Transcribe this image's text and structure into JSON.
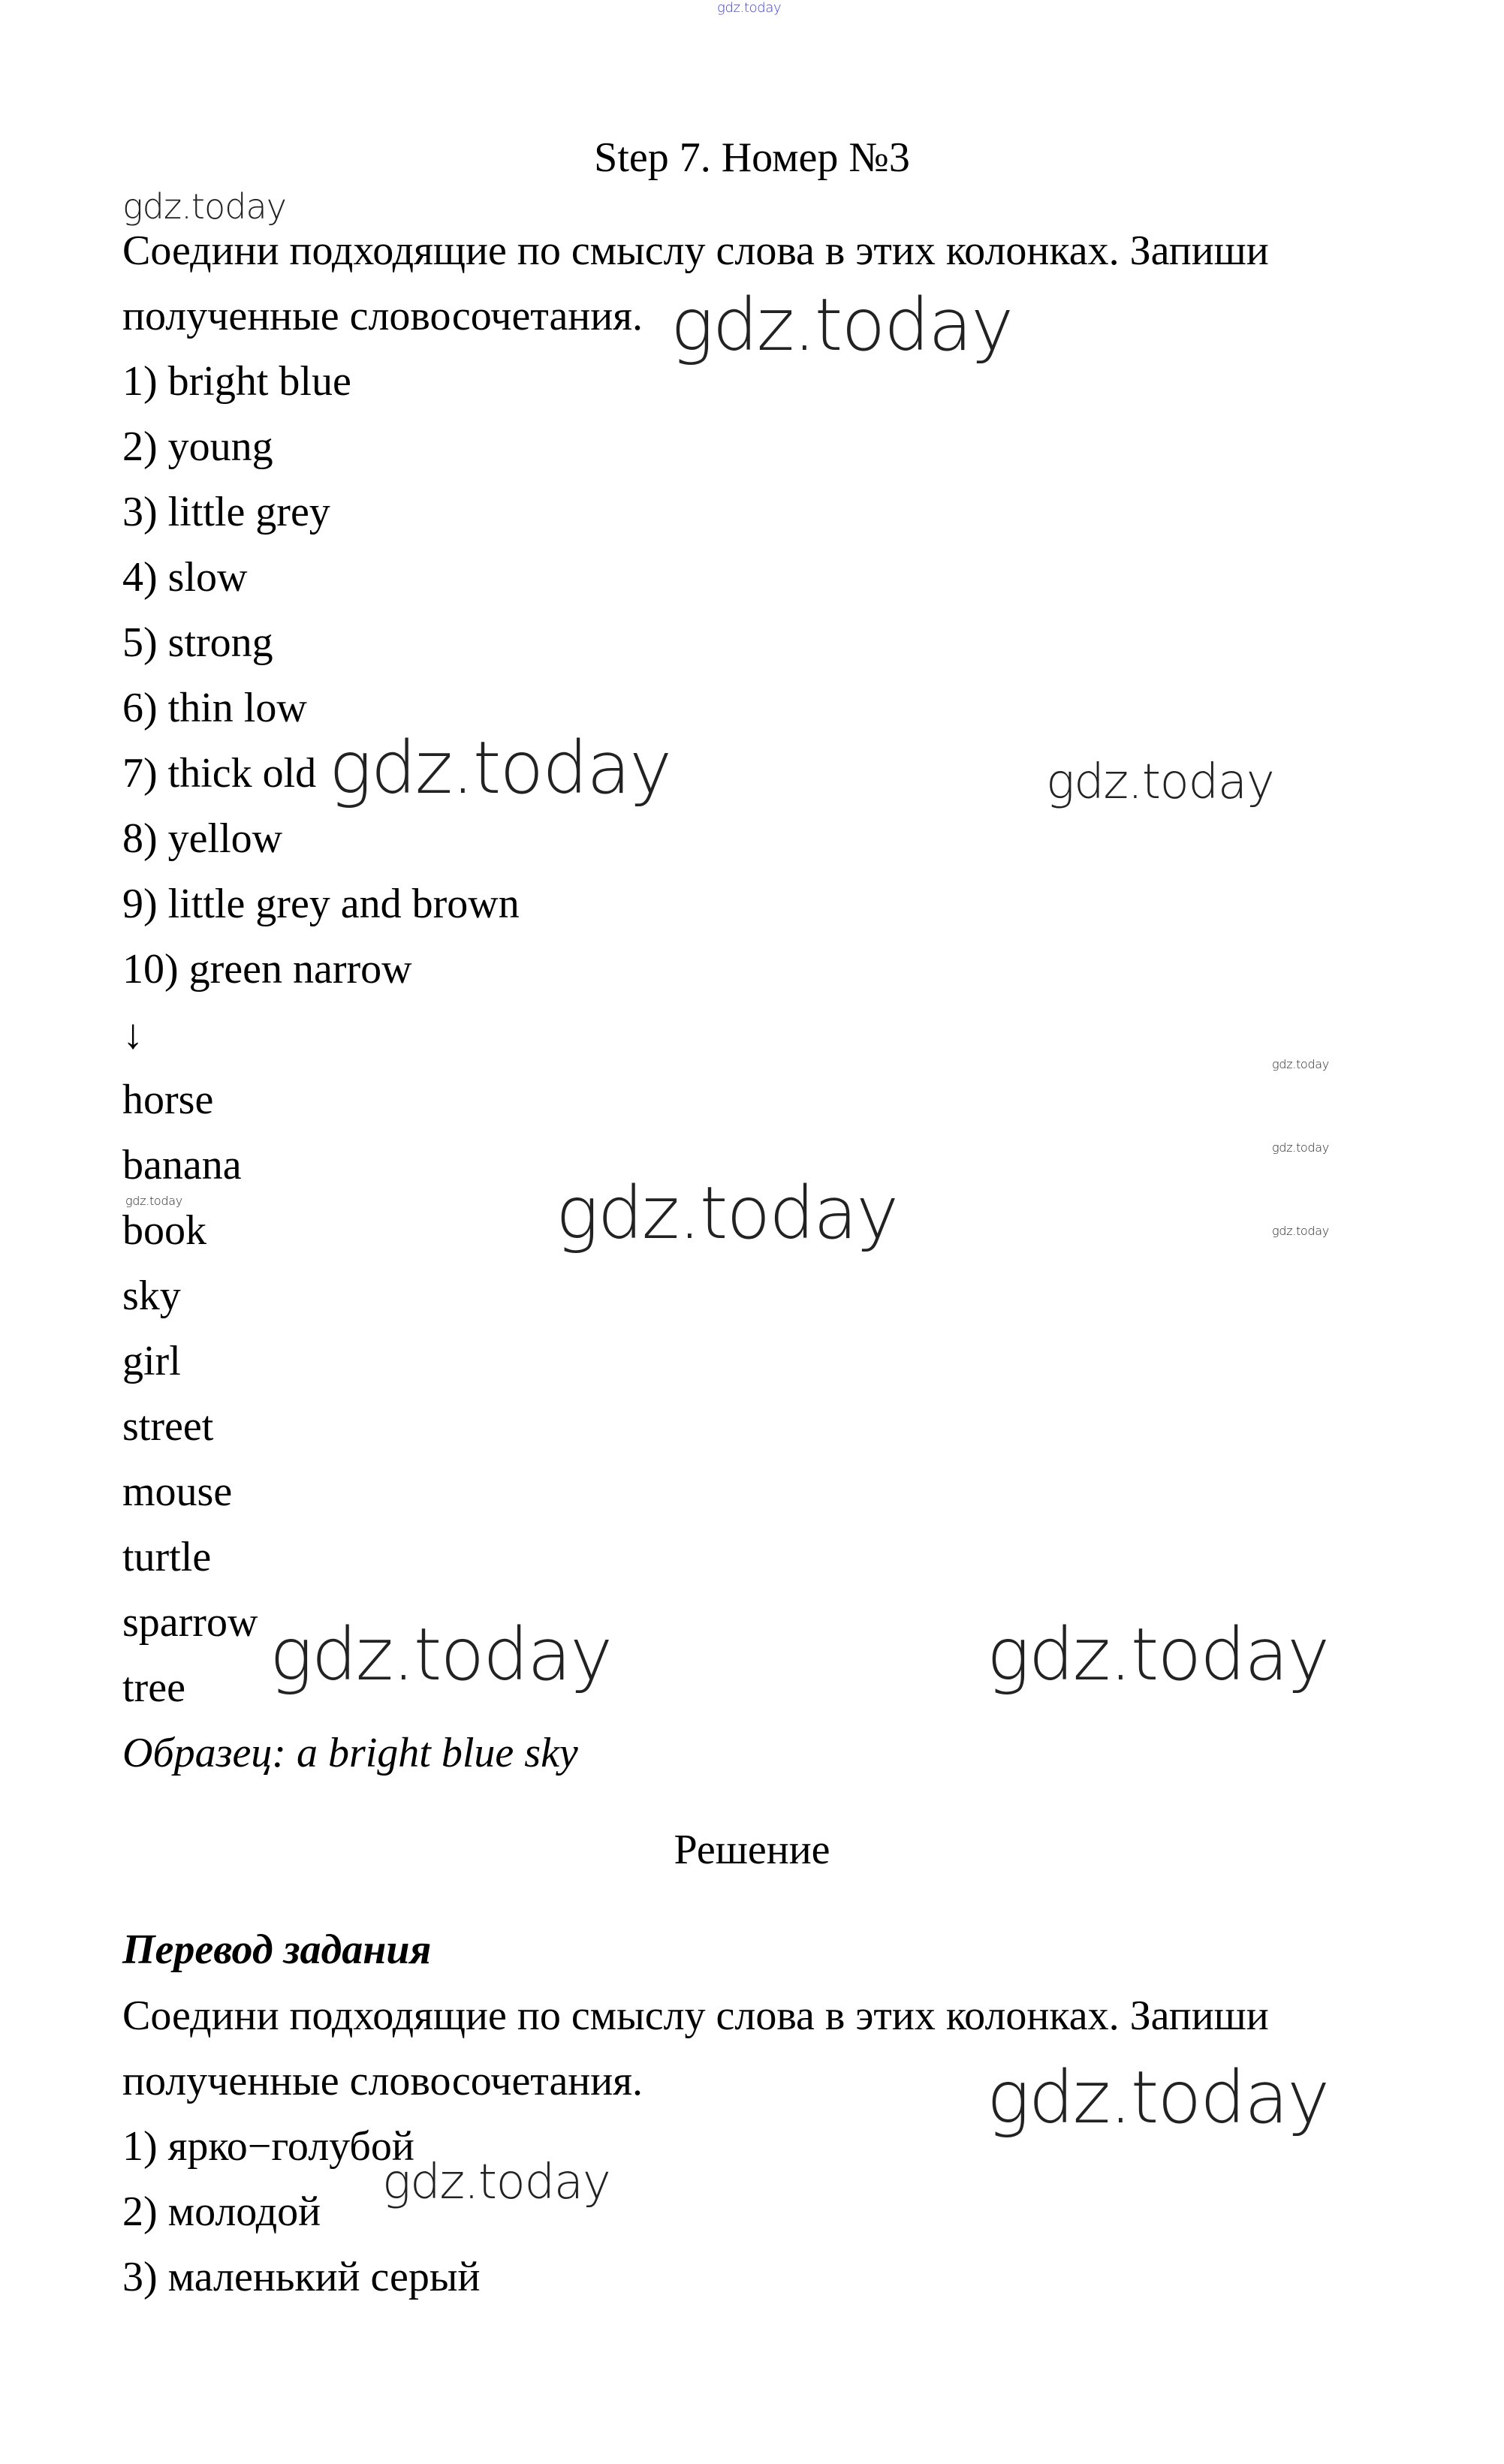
{
  "title": "Step 7. Номер №3",
  "task": {
    "instruction_line1": "Соедини подходящие по смыслу слова в этих колонках. Запиши",
    "instruction_line2": "полученные словосочетания.",
    "adjectives": [
      "1) bright blue",
      "2) young",
      "3) little grey",
      "4) slow",
      "5) strong",
      "6) thin low",
      "7) thick old",
      "8) yellow",
      "9) little grey and brown",
      "10) green narrow"
    ],
    "arrow": "↓",
    "nouns": [
      "horse",
      "banana",
      "book",
      "sky",
      "girl",
      "street",
      "mouse",
      "turtle",
      "sparrow",
      "tree"
    ],
    "example": "Образец: a bright blue sky"
  },
  "solution": {
    "heading": "Решение",
    "translation_heading": "Перевод задания",
    "instruction_line1": "Соедини подходящие по смыслу слова в этих колонках. Запиши",
    "instruction_line2": "полученные словосочетания.",
    "items": [
      "1) ярко−голубой",
      "2) молодой",
      "3) маленький серый"
    ]
  },
  "watermarks": [
    "gdz.today",
    "gdz.today",
    "gdz.today",
    "gdz.today",
    "gdz.today",
    "gdz.today",
    "gdz.today",
    "gdz.today",
    "gdz.today",
    "gdz.today",
    "gdz.today",
    "gdz.today",
    "gdz.today",
    "gdz.today"
  ],
  "colors": {
    "top_watermark": "#3a3adf",
    "text": "#000000"
  }
}
